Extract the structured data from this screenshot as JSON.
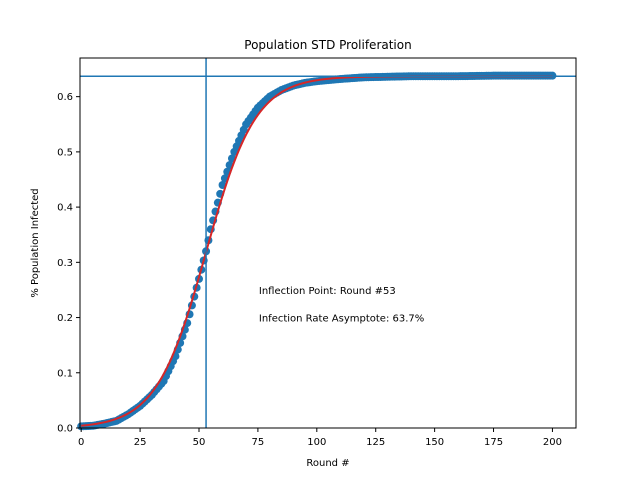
{
  "chart_data": {
    "type": "scatter",
    "title": "Population STD Proliferation",
    "xlabel": "Round #",
    "ylabel": "% Population Infected",
    "xlim": [
      0,
      210
    ],
    "ylim": [
      0,
      0.67
    ],
    "xticks": [
      0,
      25,
      50,
      75,
      100,
      125,
      150,
      175,
      200
    ],
    "yticks": [
      0.0,
      0.1,
      0.2,
      0.3,
      0.4,
      0.5,
      0.6
    ],
    "grid": false,
    "legend": "none",
    "annotations": [
      {
        "text": "Inflection Point: Round #53",
        "x": 75,
        "y": 0.25
      },
      {
        "text": "Infection Rate Asymptote: 63.7%",
        "x": 75,
        "y": 0.2
      }
    ],
    "vline": {
      "x": 53,
      "color": "#1f77b4"
    },
    "hline": {
      "y": 0.637,
      "color": "#1f77b4"
    },
    "points": {
      "x_start": 0,
      "x_end": 200,
      "color": "#1f77b4",
      "x": [
        0,
        5,
        10,
        15,
        20,
        25,
        30,
        35,
        40,
        45,
        50,
        53,
        55,
        60,
        65,
        70,
        75,
        80,
        85,
        90,
        95,
        100,
        105,
        110,
        120,
        130,
        140,
        150,
        160,
        175,
        200
      ],
      "y": [
        0.003,
        0.004,
        0.008,
        0.013,
        0.025,
        0.04,
        0.06,
        0.085,
        0.13,
        0.19,
        0.27,
        0.32,
        0.36,
        0.44,
        0.5,
        0.55,
        0.58,
        0.6,
        0.612,
        0.62,
        0.625,
        0.628,
        0.63,
        0.632,
        0.635,
        0.636,
        0.637,
        0.637,
        0.637,
        0.638,
        0.638
      ]
    },
    "fit_curve": {
      "model": "logistic",
      "L": 0.637,
      "k": 0.095,
      "x0": 53,
      "color": "#d62728"
    }
  }
}
